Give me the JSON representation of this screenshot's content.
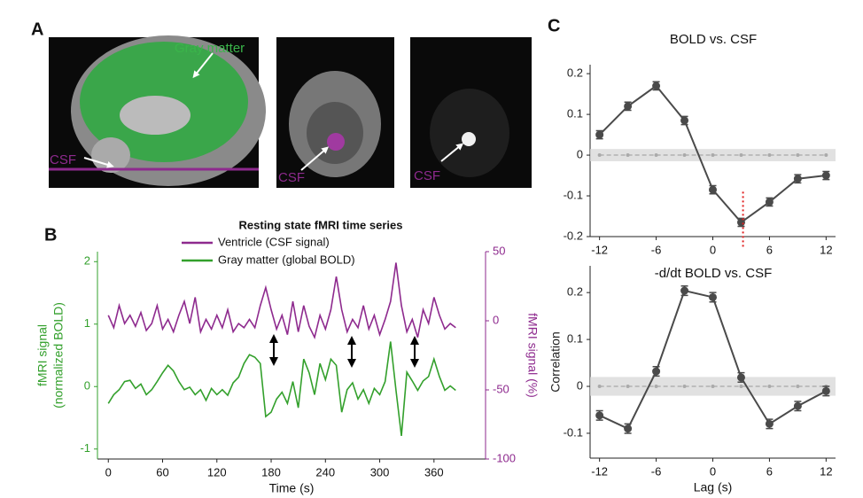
{
  "panel_labels": [
    "A",
    "B",
    "C"
  ],
  "image_labels": [
    "Gray matter",
    "CSF",
    "CSF",
    "CSF"
  ],
  "chart_data": [
    {
      "type": "line",
      "title": "Resting state fMRI time series",
      "xlabel": "Time (s)",
      "ylabel": [
        "fMRI signal",
        "(normalized BOLD)"
      ],
      "y2label": "fMRI signal (%)",
      "x": [
        0,
        6,
        12,
        18,
        24,
        30,
        36,
        42,
        48,
        54,
        60,
        66,
        72,
        78,
        84,
        90,
        96,
        102,
        108,
        114,
        120,
        126,
        132,
        138,
        144,
        150,
        156,
        162,
        168,
        174,
        180,
        186,
        192,
        198,
        204,
        210,
        216,
        222,
        228,
        234,
        240,
        246,
        252,
        258,
        264,
        270,
        276,
        282,
        288,
        294,
        300,
        306,
        312,
        318,
        324,
        330,
        336,
        342,
        348,
        354,
        360,
        366,
        372,
        378,
        384
      ],
      "series": [
        {
          "name": "Ventricle (CSF signal)",
          "color": "#8e2a8e",
          "axis": "y2",
          "values": [
            4,
            -5,
            11,
            -2,
            4,
            -4,
            6,
            -7,
            -2,
            11,
            -6,
            1,
            -8,
            4,
            14,
            -2,
            17,
            -8,
            1,
            -6,
            4,
            -5,
            8,
            -8,
            -2,
            -5,
            1,
            -5,
            11,
            24,
            8,
            -6,
            4,
            -10,
            14,
            -8,
            11,
            -4,
            -12,
            4,
            -6,
            8,
            32,
            8,
            -8,
            1,
            -5,
            11,
            -6,
            4,
            -10,
            1,
            14,
            42,
            11,
            -8,
            1,
            -12,
            8,
            -2,
            17,
            4,
            -6,
            -2,
            -5
          ]
        },
        {
          "name": "Gray matter (global BOLD)",
          "color": "#33a02c",
          "axis": "y",
          "values": [
            -0.27,
            -0.13,
            -0.05,
            0.08,
            0.1,
            -0.03,
            0.04,
            -0.13,
            -0.05,
            0.08,
            0.22,
            0.34,
            0.25,
            0.08,
            -0.05,
            -0.01,
            -0.13,
            -0.05,
            -0.22,
            -0.03,
            -0.13,
            -0.05,
            -0.14,
            0.06,
            0.15,
            0.37,
            0.51,
            0.47,
            0.37,
            -0.48,
            -0.41,
            -0.2,
            -0.09,
            -0.27,
            0.08,
            -0.34,
            0.44,
            0.22,
            -0.13,
            0.37,
            0.11,
            0.44,
            0.34,
            -0.41,
            -0.05,
            0.06,
            -0.2,
            -0.05,
            -0.27,
            -0.03,
            -0.13,
            0.08,
            0.72,
            -0.06,
            -0.79,
            0.23,
            0.09,
            -0.06,
            0.09,
            0.16,
            0.44,
            0.16,
            -0.06,
            0.01,
            -0.06
          ]
        }
      ],
      "xlim": [
        -12,
        417
      ],
      "xticks": [
        0,
        60,
        120,
        180,
        240,
        300,
        360
      ],
      "ylim": [
        -1.16,
        2.16
      ],
      "yticks": [
        -1,
        0,
        1,
        2
      ],
      "y2lim": [
        -100,
        50
      ],
      "y2ticks": [
        -100,
        -50,
        0,
        50
      ]
    },
    {
      "type": "line",
      "title": "BOLD vs. CSF",
      "x": [
        -12,
        -9,
        -6,
        -3,
        0,
        3,
        6,
        9,
        12
      ],
      "series": [
        {
          "color": "#4a4a4a",
          "values": [
            0.05,
            0.12,
            0.17,
            0.085,
            -0.085,
            -0.165,
            -0.115,
            -0.058,
            -0.05
          ],
          "errors": [
            0.01,
            0.01,
            0.01,
            0.01,
            0.01,
            0.01,
            0.01,
            0.01,
            0.01
          ]
        }
      ],
      "null_values": [
        0,
        0,
        0,
        0,
        0,
        0,
        0,
        0,
        0
      ],
      "null_band": [
        -0.015,
        0.015
      ],
      "marker_x": 3.2,
      "xlim": [
        -13,
        13
      ],
      "xticks": [
        -12,
        -6,
        0,
        6,
        12
      ],
      "ylim": [
        -0.2,
        0.222
      ],
      "yticks": [
        -0.2,
        -0.1,
        0,
        0.1,
        0.2
      ]
    },
    {
      "type": "line",
      "title": "-d/dt BOLD vs. CSF",
      "xlabel": "Lag (s)",
      "ylabel": [
        "Correlation"
      ],
      "x": [
        -12,
        -9,
        -6,
        -3,
        0,
        3,
        6,
        9,
        12
      ],
      "series": [
        {
          "color": "#4a4a4a",
          "values": [
            -0.062,
            -0.09,
            0.032,
            0.204,
            0.19,
            0.019,
            -0.08,
            -0.042,
            -0.01
          ],
          "errors": [
            0.01,
            0.01,
            0.01,
            0.01,
            0.01,
            0.01,
            0.01,
            0.01,
            0.01
          ]
        }
      ],
      "null_values": [
        0,
        0,
        0,
        0,
        0,
        0,
        0,
        0,
        0
      ],
      "null_band": [
        -0.02,
        0.02
      ],
      "xlim": [
        -13,
        13
      ],
      "xticks": [
        -12,
        -6,
        0,
        6,
        12
      ],
      "ylim": [
        -0.153,
        0.257
      ],
      "yticks": [
        -0.1,
        0,
        0.1,
        0.2
      ]
    }
  ]
}
